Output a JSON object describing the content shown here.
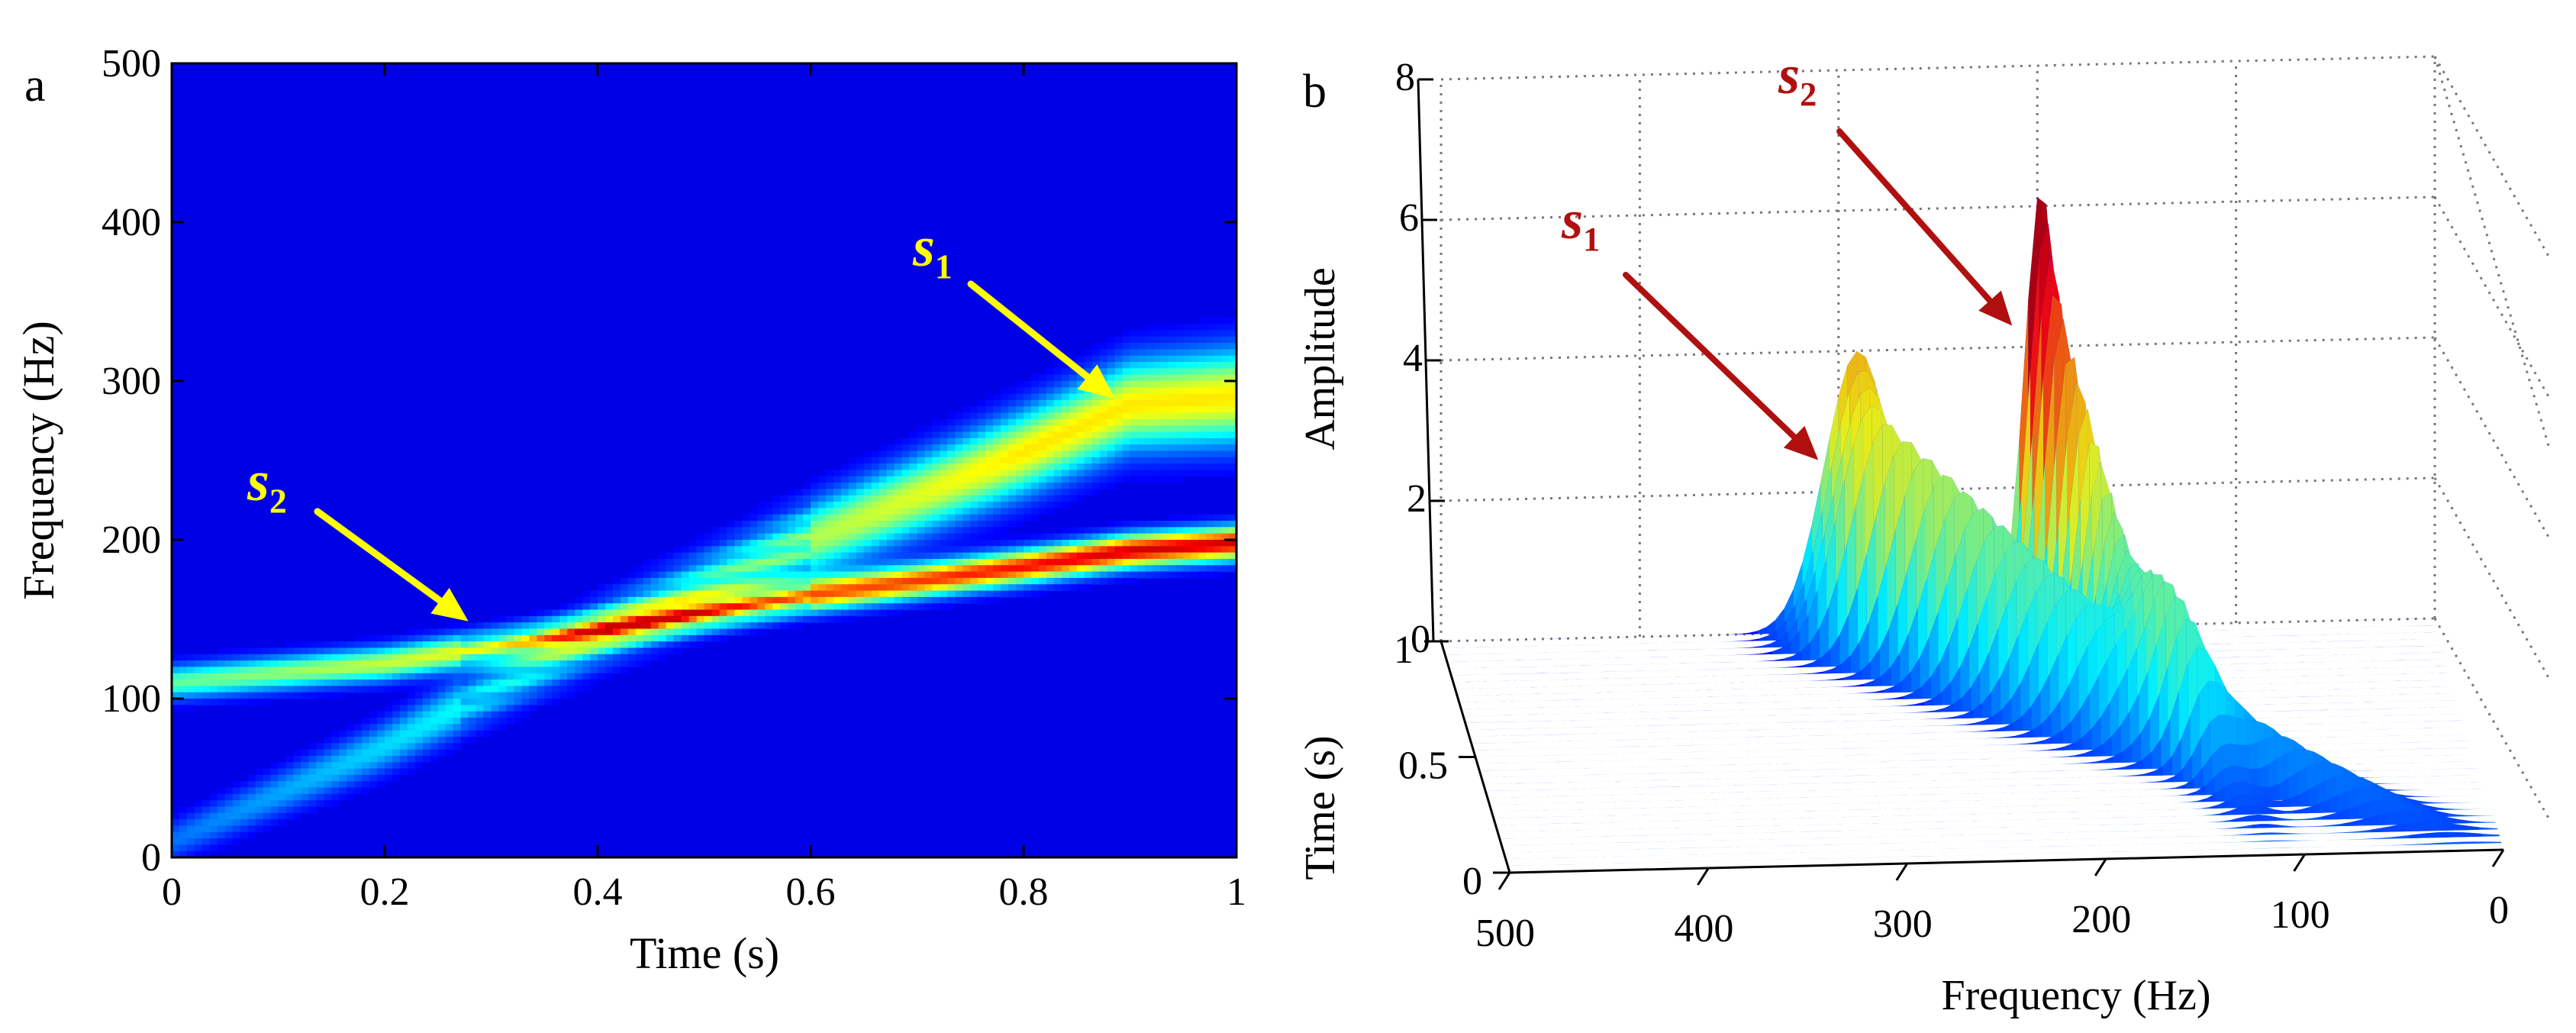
{
  "chart_data": [
    {
      "type": "heatmap",
      "panel_label": "a",
      "title": "",
      "xlabel": "Time (s)",
      "ylabel": "Frequency (Hz)",
      "xlim": [
        0,
        1
      ],
      "ylim": [
        0,
        500
      ],
      "xticks": [
        "0",
        "0.2",
        "0.4",
        "0.6",
        "0.8",
        "1"
      ],
      "xtick_values": [
        0,
        0.2,
        0.4,
        0.6,
        0.8,
        1
      ],
      "yticks": [
        "0",
        "100",
        "200",
        "300",
        "400",
        "500"
      ],
      "ytick_values": [
        0,
        100,
        200,
        300,
        400,
        500
      ],
      "series": [
        {
          "name": "s1",
          "t": [
            0,
            0.2,
            0.4,
            0.6,
            0.8,
            0.9,
            1.0
          ],
          "f": [
            10,
            70,
            140,
            200,
            255,
            285,
            290
          ],
          "peak_amplitude": 4
        },
        {
          "name": "s2",
          "t": [
            0,
            0.2,
            0.4,
            0.6,
            0.8,
            0.9,
            1.0
          ],
          "f": [
            110,
            122,
            143,
            165,
            183,
            193,
            198
          ],
          "peak_amplitude": 6
        }
      ],
      "annotations": [
        {
          "text": "s",
          "sub": "1",
          "color": "#ffff00",
          "points_to": {
            "t": 0.88,
            "f": 285
          }
        },
        {
          "text": "s",
          "sub": "2",
          "color": "#ffff00",
          "points_to": {
            "t": 0.27,
            "f": 140
          }
        }
      ],
      "colormap": "jet"
    },
    {
      "type": "surface",
      "panel_label": "b",
      "title": "",
      "xlabel": "Frequency (Hz)",
      "ylabel": "Time (s)",
      "zlabel": "Amplitude",
      "xlim": [
        500,
        0
      ],
      "ylim": [
        0,
        1
      ],
      "zlim": [
        0,
        8
      ],
      "xticks": [
        "500",
        "400",
        "300",
        "200",
        "100",
        "0"
      ],
      "xtick_values": [
        500,
        400,
        300,
        200,
        100,
        0
      ],
      "yticks": [
        "0",
        "0.5",
        "1"
      ],
      "ytick_values": [
        0,
        0.5,
        1
      ],
      "zticks": [
        "0",
        "2",
        "4",
        "6",
        "8"
      ],
      "ztick_values": [
        0,
        2,
        4,
        6,
        8
      ],
      "series": [
        {
          "name": "s1",
          "peak_frequency": 290,
          "peak_amplitude": 4
        },
        {
          "name": "s2",
          "peak_frequency": 198,
          "peak_amplitude": 6.3
        }
      ],
      "annotations": [
        {
          "text": "s",
          "sub": "1",
          "color": "#b01010"
        },
        {
          "text": "s",
          "sub": "2",
          "color": "#b01010"
        }
      ],
      "grid": true,
      "colormap": "jet"
    }
  ]
}
